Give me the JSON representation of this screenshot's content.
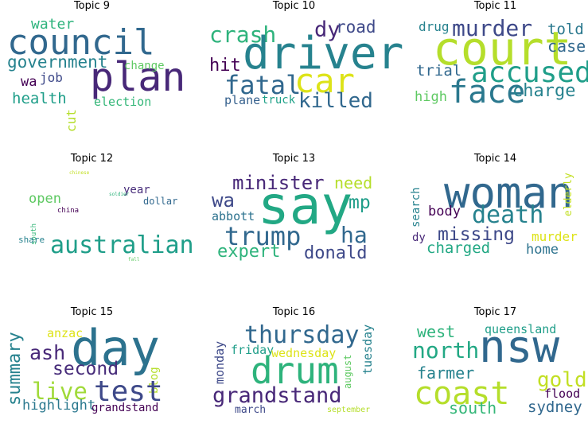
{
  "panels": [
    {
      "title": "Topic 9",
      "words": [
        {
          "text": "council",
          "color": "#31688e"
        },
        {
          "text": "plan",
          "color": "#482878"
        },
        {
          "text": "government",
          "color": "#26828e"
        },
        {
          "text": "water",
          "color": "#2eb37c"
        },
        {
          "text": "change",
          "color": "#5ec962"
        },
        {
          "text": "job",
          "color": "#3e4989"
        },
        {
          "text": "wa",
          "color": "#440154"
        },
        {
          "text": "health",
          "color": "#1f9e89"
        },
        {
          "text": "cut",
          "color": "#b5de2b"
        },
        {
          "text": "election",
          "color": "#35b779"
        }
      ]
    },
    {
      "title": "Topic 10",
      "words": [
        {
          "text": "crash",
          "color": "#2eb37c"
        },
        {
          "text": "driver",
          "color": "#26828e"
        },
        {
          "text": "dy",
          "color": "#482878"
        },
        {
          "text": "road",
          "color": "#3e4989"
        },
        {
          "text": "hit",
          "color": "#440154"
        },
        {
          "text": "fatal",
          "color": "#31688e"
        },
        {
          "text": "car",
          "color": "#dde318"
        },
        {
          "text": "plane",
          "color": "#35608d"
        },
        {
          "text": "truck",
          "color": "#1fa188"
        },
        {
          "text": "killed",
          "color": "#31688e"
        }
      ]
    },
    {
      "title": "Topic 11",
      "words": [
        {
          "text": "drug",
          "color": "#26828e"
        },
        {
          "text": "murder",
          "color": "#3e4989"
        },
        {
          "text": "told",
          "color": "#2a788e"
        },
        {
          "text": "court",
          "color": "#b5de2b"
        },
        {
          "text": "case",
          "color": "#31688e"
        },
        {
          "text": "trial",
          "color": "#31688e"
        },
        {
          "text": "accused",
          "color": "#1f9e89"
        },
        {
          "text": "high",
          "color": "#5ec962"
        },
        {
          "text": "face",
          "color": "#2a788e"
        },
        {
          "text": "charge",
          "color": "#26828e"
        }
      ]
    },
    {
      "title": "Topic 12",
      "words": [
        {
          "text": "chinese",
          "color": "#c2df23"
        },
        {
          "text": "year",
          "color": "#472c7a"
        },
        {
          "text": "open",
          "color": "#5ec962"
        },
        {
          "text": "soldier",
          "color": "#2eb37c"
        },
        {
          "text": "dollar",
          "color": "#31688e"
        },
        {
          "text": "china",
          "color": "#440154"
        },
        {
          "text": "south",
          "color": "#35b779"
        },
        {
          "text": "share",
          "color": "#26828e"
        },
        {
          "text": "australian",
          "color": "#1f9e89"
        },
        {
          "text": "fall",
          "color": "#5ec962"
        }
      ]
    },
    {
      "title": "Topic 13",
      "words": [
        {
          "text": "minister",
          "color": "#482878"
        },
        {
          "text": "need",
          "color": "#b5de2b"
        },
        {
          "text": "say",
          "color": "#22a884"
        },
        {
          "text": "wa",
          "color": "#3e4989"
        },
        {
          "text": "mp",
          "color": "#1f9e89"
        },
        {
          "text": "abbott",
          "color": "#2c728e"
        },
        {
          "text": "trump",
          "color": "#31688e"
        },
        {
          "text": "ha",
          "color": "#31688e"
        },
        {
          "text": "expert",
          "color": "#2eb37c"
        },
        {
          "text": "donald",
          "color": "#3e4989"
        }
      ]
    },
    {
      "title": "Topic 14",
      "words": [
        {
          "text": "woman",
          "color": "#31688e"
        },
        {
          "text": "elderly",
          "color": "#c2df23"
        },
        {
          "text": "search",
          "color": "#26828e"
        },
        {
          "text": "body",
          "color": "#440154"
        },
        {
          "text": "death",
          "color": "#26828e"
        },
        {
          "text": "missing",
          "color": "#3e4989"
        },
        {
          "text": "dy",
          "color": "#482878"
        },
        {
          "text": "murder",
          "color": "#dde318"
        },
        {
          "text": "charged",
          "color": "#22a884"
        },
        {
          "text": "home",
          "color": "#2c728e"
        }
      ]
    },
    {
      "title": "Topic 15",
      "words": [
        {
          "text": "anzac",
          "color": "#dde318"
        },
        {
          "text": "day",
          "color": "#2c728e"
        },
        {
          "text": "summary",
          "color": "#26828e"
        },
        {
          "text": "ash",
          "color": "#482878"
        },
        {
          "text": "blog",
          "color": "#b5de2b"
        },
        {
          "text": "second",
          "color": "#472c7a"
        },
        {
          "text": "live",
          "color": "#a0da39"
        },
        {
          "text": "test",
          "color": "#3e4989"
        },
        {
          "text": "highlight",
          "color": "#2a788e"
        },
        {
          "text": "grandstand",
          "color": "#440154"
        }
      ]
    },
    {
      "title": "Topic 16",
      "words": [
        {
          "text": "thursday",
          "color": "#31688e"
        },
        {
          "text": "tuesday",
          "color": "#26828e"
        },
        {
          "text": "monday",
          "color": "#3e4989"
        },
        {
          "text": "friday",
          "color": "#1f9e89"
        },
        {
          "text": "wednesday",
          "color": "#dde318"
        },
        {
          "text": "august",
          "color": "#5ec962"
        },
        {
          "text": "drum",
          "color": "#2eb37c"
        },
        {
          "text": "grandstand",
          "color": "#482878"
        },
        {
          "text": "march",
          "color": "#3e4989"
        },
        {
          "text": "september",
          "color": "#b5de2b"
        }
      ]
    },
    {
      "title": "Topic 17",
      "words": [
        {
          "text": "west",
          "color": "#2eb37c"
        },
        {
          "text": "queensland",
          "color": "#1f9e89"
        },
        {
          "text": "north",
          "color": "#22a884"
        },
        {
          "text": "nsw",
          "color": "#31688e"
        },
        {
          "text": "farmer",
          "color": "#26828e"
        },
        {
          "text": "coast",
          "color": "#b5de2b"
        },
        {
          "text": "gold",
          "color": "#c2df23"
        },
        {
          "text": "flood",
          "color": "#440154"
        },
        {
          "text": "south",
          "color": "#35b779"
        },
        {
          "text": "sydney",
          "color": "#31688e"
        }
      ]
    }
  ]
}
